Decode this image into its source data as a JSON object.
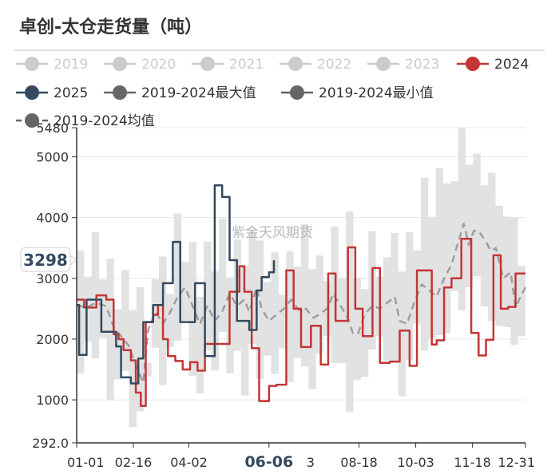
{
  "title": "卓创-太仓走货量（吨）",
  "watermark": "紫金天风期货",
  "colors": {
    "series_2024": "#c43535",
    "series_2025": "#34495e",
    "band": "#e2e2e2",
    "mean": "#9e9e9e",
    "inactive": "#cccccc",
    "gray_marker": "#666666",
    "grid": "#e6e6e6",
    "axis": "#333333"
  },
  "chart_data": {
    "type": "line",
    "title": "卓创-太仓走货量（吨）",
    "legend": [
      {
        "name": "2019",
        "active": false
      },
      {
        "name": "2020",
        "active": false
      },
      {
        "name": "2021",
        "active": false
      },
      {
        "name": "2022",
        "active": false
      },
      {
        "name": "2023",
        "active": false
      },
      {
        "name": "2024",
        "active": true
      },
      {
        "name": "2025",
        "active": true
      },
      {
        "name": "2019-2024最大值",
        "active": true
      },
      {
        "name": "2019-2024最小值",
        "active": true
      },
      {
        "name": "2019-2024均值",
        "active": true
      }
    ],
    "x_ticks": [
      "01-01",
      "02-16",
      "04-02",
      "06-06",
      "08-18",
      "10-03",
      "11-18",
      "12-31"
    ],
    "x_tick_days": [
      0,
      46,
      91,
      156,
      229,
      275,
      321,
      364
    ],
    "highlight_tick": "06-06",
    "partial_tick_label": "3",
    "x_range_days": [
      0,
      364
    ],
    "y_ticks": [
      292.0,
      1000,
      2000,
      3000,
      4000,
      5000,
      5480
    ],
    "y_tick_labels": [
      "292.0",
      "1000",
      "2000",
      "3000",
      "4000",
      "5000",
      "5480"
    ],
    "ylim": [
      292,
      5480
    ],
    "y_pointer": {
      "value": 3298,
      "label": "3298"
    },
    "series": [
      {
        "name": "2024",
        "points": [
          [
            0,
            2650
          ],
          [
            6,
            2650
          ],
          [
            6,
            2520
          ],
          [
            16,
            2520
          ],
          [
            16,
            2720
          ],
          [
            24,
            2720
          ],
          [
            24,
            2650
          ],
          [
            30,
            2650
          ],
          [
            30,
            2080
          ],
          [
            34,
            2080
          ],
          [
            34,
            2000
          ],
          [
            38,
            2000
          ],
          [
            38,
            1820
          ],
          [
            44,
            1820
          ],
          [
            44,
            1650
          ],
          [
            48,
            1650
          ],
          [
            48,
            1120
          ],
          [
            52,
            1120
          ],
          [
            52,
            900
          ],
          [
            56,
            900
          ],
          [
            56,
            2280
          ],
          [
            62,
            2280
          ],
          [
            62,
            2400
          ],
          [
            66,
            2400
          ],
          [
            66,
            2560
          ],
          [
            70,
            2560
          ],
          [
            70,
            2000
          ],
          [
            74,
            2000
          ],
          [
            74,
            1720
          ],
          [
            80,
            1720
          ],
          [
            80,
            1640
          ],
          [
            86,
            1640
          ],
          [
            86,
            1500
          ],
          [
            92,
            1500
          ],
          [
            92,
            1620
          ],
          [
            98,
            1620
          ],
          [
            98,
            1480
          ],
          [
            104,
            1480
          ],
          [
            104,
            1920
          ],
          [
            124,
            1920
          ],
          [
            124,
            2780
          ],
          [
            132,
            2780
          ],
          [
            132,
            3200
          ],
          [
            136,
            3200
          ],
          [
            136,
            2780
          ],
          [
            142,
            2780
          ],
          [
            142,
            1850
          ],
          [
            148,
            1850
          ],
          [
            148,
            980
          ],
          [
            156,
            980
          ],
          [
            156,
            1230
          ],
          [
            162,
            1230
          ],
          [
            162,
            1250
          ],
          [
            170,
            1250
          ],
          [
            170,
            3130
          ],
          [
            176,
            3130
          ],
          [
            176,
            2500
          ],
          [
            182,
            2500
          ],
          [
            182,
            1870
          ],
          [
            190,
            1870
          ],
          [
            190,
            2220
          ],
          [
            198,
            2220
          ],
          [
            198,
            1580
          ],
          [
            204,
            1580
          ],
          [
            204,
            3080
          ],
          [
            210,
            3080
          ],
          [
            210,
            2300
          ],
          [
            220,
            2300
          ],
          [
            220,
            3510
          ],
          [
            226,
            3510
          ],
          [
            226,
            2500
          ],
          [
            232,
            2500
          ],
          [
            232,
            2050
          ],
          [
            240,
            2050
          ],
          [
            240,
            3170
          ],
          [
            246,
            3170
          ],
          [
            246,
            1610
          ],
          [
            254,
            1610
          ],
          [
            254,
            1630
          ],
          [
            262,
            1630
          ],
          [
            262,
            2140
          ],
          [
            270,
            2140
          ],
          [
            270,
            1560
          ],
          [
            276,
            1560
          ],
          [
            276,
            3130
          ],
          [
            288,
            3130
          ],
          [
            288,
            1910
          ],
          [
            292,
            1910
          ],
          [
            292,
            1980
          ],
          [
            298,
            1980
          ],
          [
            298,
            2850
          ],
          [
            304,
            2850
          ],
          [
            304,
            3000
          ],
          [
            312,
            3000
          ],
          [
            312,
            3650
          ],
          [
            320,
            3650
          ],
          [
            320,
            2100
          ],
          [
            326,
            2100
          ],
          [
            326,
            1730
          ],
          [
            332,
            1730
          ],
          [
            332,
            1990
          ],
          [
            338,
            1990
          ],
          [
            338,
            3380
          ],
          [
            344,
            3380
          ],
          [
            344,
            2500
          ],
          [
            350,
            2500
          ],
          [
            350,
            2530
          ],
          [
            356,
            2530
          ],
          [
            356,
            3080
          ],
          [
            364,
            3080
          ]
        ]
      },
      {
        "name": "2025",
        "points": [
          [
            0,
            2560
          ],
          [
            2,
            2560
          ],
          [
            2,
            1740
          ],
          [
            8,
            1740
          ],
          [
            8,
            2650
          ],
          [
            20,
            2650
          ],
          [
            20,
            2120
          ],
          [
            32,
            2120
          ],
          [
            32,
            1880
          ],
          [
            36,
            1880
          ],
          [
            36,
            1370
          ],
          [
            44,
            1370
          ],
          [
            44,
            1270
          ],
          [
            50,
            1270
          ],
          [
            50,
            1680
          ],
          [
            54,
            1680
          ],
          [
            54,
            2280
          ],
          [
            60,
            2280
          ],
          [
            60,
            2280
          ],
          [
            62,
            2280
          ],
          [
            62,
            2560
          ],
          [
            70,
            2560
          ],
          [
            70,
            2920
          ],
          [
            78,
            2920
          ],
          [
            78,
            3600
          ],
          [
            84,
            3600
          ],
          [
            84,
            2280
          ],
          [
            96,
            2280
          ],
          [
            96,
            2920
          ],
          [
            104,
            2920
          ],
          [
            104,
            1720
          ],
          [
            112,
            1720
          ],
          [
            112,
            4530
          ],
          [
            118,
            4530
          ],
          [
            118,
            4340
          ],
          [
            124,
            4340
          ],
          [
            124,
            3300
          ],
          [
            130,
            3300
          ],
          [
            130,
            2300
          ],
          [
            140,
            2300
          ],
          [
            140,
            2150
          ],
          [
            146,
            2150
          ],
          [
            146,
            2800
          ],
          [
            150,
            2800
          ],
          [
            150,
            3020
          ],
          [
            156,
            3020
          ],
          [
            156,
            3100
          ],
          [
            160,
            3100
          ],
          [
            160,
            3298
          ]
        ]
      },
      {
        "name": "2019-2024均值",
        "points": [
          [
            0,
            2560
          ],
          [
            8,
            2520
          ],
          [
            16,
            2600
          ],
          [
            24,
            2540
          ],
          [
            30,
            2200
          ],
          [
            36,
            2050
          ],
          [
            42,
            1900
          ],
          [
            48,
            1580
          ],
          [
            54,
            1280
          ],
          [
            58,
            2150
          ],
          [
            64,
            2450
          ],
          [
            70,
            2250
          ],
          [
            76,
            2450
          ],
          [
            82,
            2700
          ],
          [
            88,
            2850
          ],
          [
            94,
            2550
          ],
          [
            100,
            2250
          ],
          [
            106,
            2550
          ],
          [
            112,
            2300
          ],
          [
            118,
            2450
          ],
          [
            124,
            2750
          ],
          [
            130,
            2550
          ],
          [
            136,
            2650
          ],
          [
            140,
            2450
          ],
          [
            146,
            2850
          ],
          [
            150,
            2500
          ],
          [
            156,
            2300
          ],
          [
            162,
            2400
          ],
          [
            168,
            2500
          ],
          [
            174,
            2650
          ],
          [
            180,
            2480
          ],
          [
            186,
            2500
          ],
          [
            192,
            2350
          ],
          [
            198,
            2420
          ],
          [
            204,
            2520
          ],
          [
            208,
            2750
          ],
          [
            214,
            2550
          ],
          [
            220,
            2350
          ],
          [
            224,
            2100
          ],
          [
            228,
            2080
          ],
          [
            234,
            2420
          ],
          [
            240,
            2550
          ],
          [
            246,
            2500
          ],
          [
            252,
            2600
          ],
          [
            258,
            2700
          ],
          [
            262,
            2300
          ],
          [
            268,
            2250
          ],
          [
            274,
            2620
          ],
          [
            280,
            2900
          ],
          [
            286,
            2800
          ],
          [
            292,
            2700
          ],
          [
            298,
            3000
          ],
          [
            304,
            3220
          ],
          [
            308,
            3500
          ],
          [
            314,
            3900
          ],
          [
            318,
            3550
          ],
          [
            322,
            3780
          ],
          [
            326,
            3780
          ],
          [
            332,
            3600
          ],
          [
            336,
            3450
          ],
          [
            340,
            3500
          ],
          [
            346,
            3000
          ],
          [
            352,
            3100
          ],
          [
            356,
            2520
          ],
          [
            360,
            2700
          ],
          [
            364,
            2850
          ]
        ]
      }
    ]
  }
}
